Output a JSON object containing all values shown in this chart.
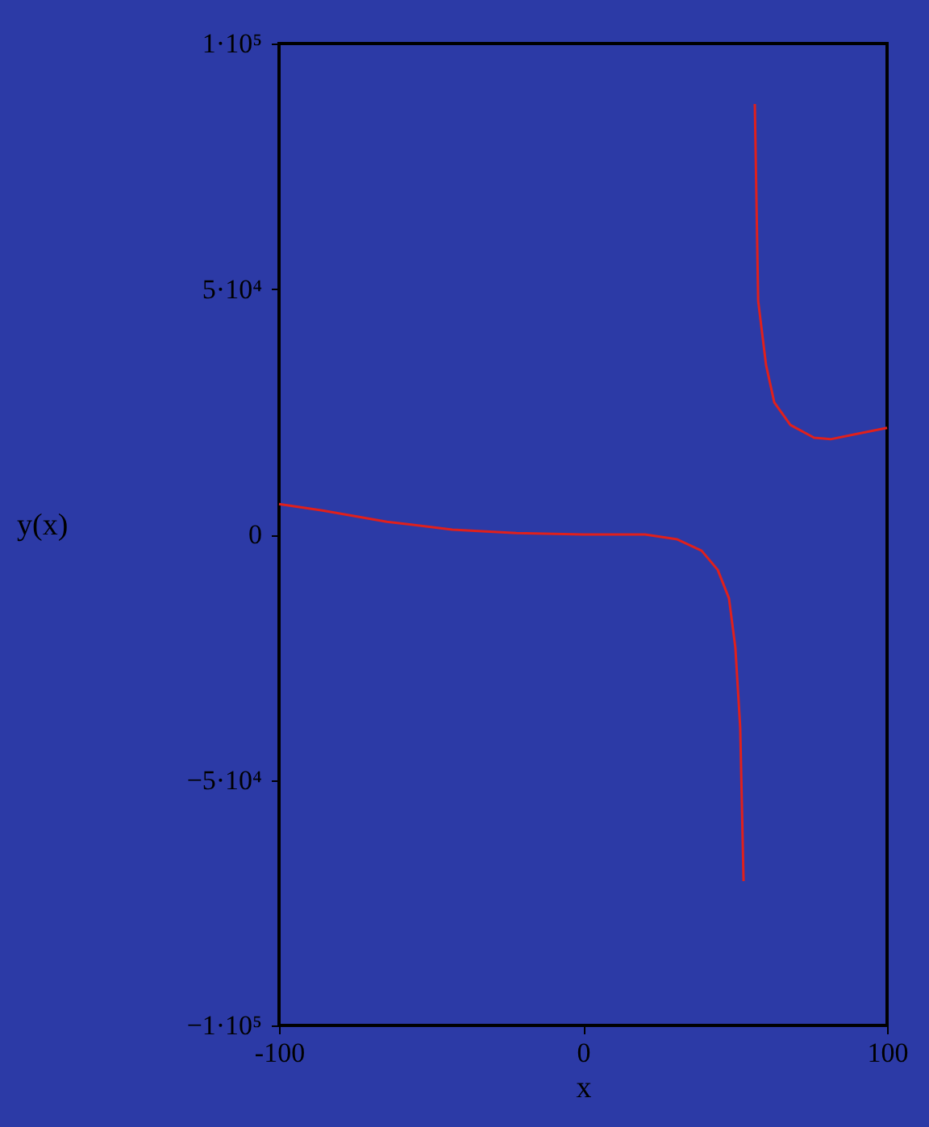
{
  "chart_data": {
    "type": "line",
    "xlabel": "x",
    "ylabel": "y(x)",
    "x": [
      -100,
      -85.7,
      -64.5,
      -43,
      -22,
      0,
      20.4,
      31,
      39,
      44.3,
      48,
      50.1,
      51.7,
      52.8,
      54.5,
      56.5,
      57.6,
      60.2,
      62.9,
      68.2,
      76,
      81.4,
      89.4,
      100
    ],
    "series": [
      {
        "color": "#e0201c",
        "values": [
          6200,
          4900,
          2600,
          1000,
          300,
          0,
          0,
          -1000,
          -3300,
          -7200,
          -13000,
          -23000,
          -39400,
          -70600,
          null,
          87700,
          47600,
          34500,
          26900,
          22300,
          19700,
          19400,
          20400,
          21700
        ]
      }
    ],
    "xlim": [
      -100,
      100
    ],
    "ylim": [
      -100000,
      100000
    ],
    "xticks": [
      -100,
      0,
      100
    ],
    "yticks": [
      {
        "value": -100000,
        "label": "−1·10⁵"
      },
      {
        "value": -50000,
        "label": "−5·10⁴"
      },
      0,
      {
        "value": 50000,
        "label": "5·10⁴"
      },
      {
        "value": 100000,
        "label": "1·10⁵"
      }
    ],
    "grid": false,
    "legend": false,
    "marker": "none",
    "line_style": "solid"
  }
}
